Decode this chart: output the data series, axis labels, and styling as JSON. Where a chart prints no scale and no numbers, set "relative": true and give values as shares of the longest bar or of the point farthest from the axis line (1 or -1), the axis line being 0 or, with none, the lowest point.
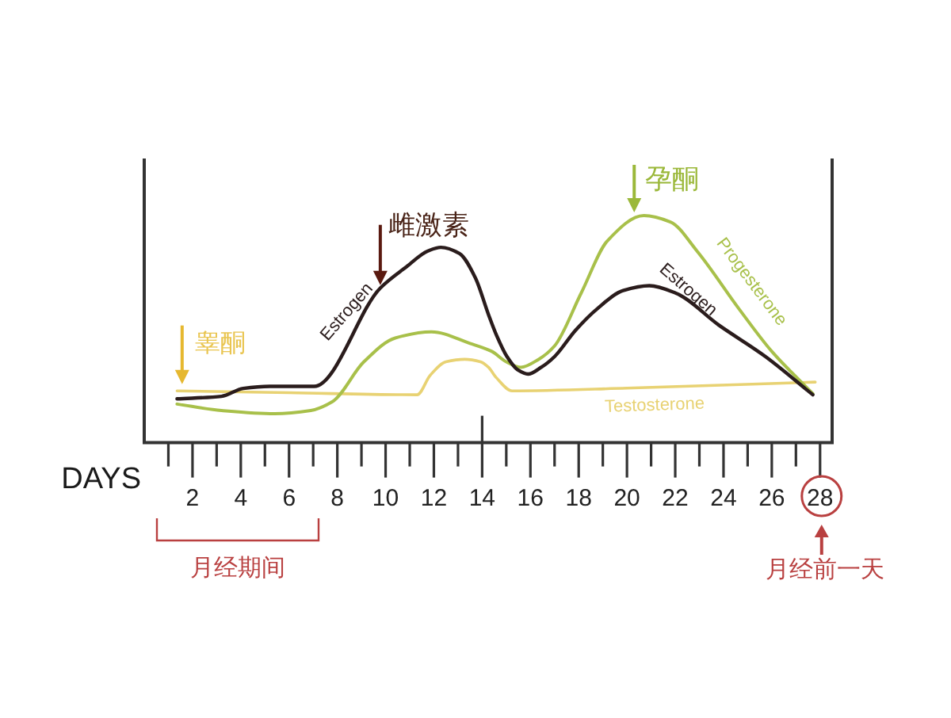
{
  "chart_data": {
    "type": "line",
    "relative": true,
    "xlabel": "DAYS",
    "xlim": [
      0,
      28.5
    ],
    "xticks": [
      {
        "value": 1,
        "label": null
      },
      2,
      {
        "value": 3,
        "label": null
      },
      4,
      {
        "value": 5,
        "label": null
      },
      6,
      {
        "value": 7,
        "label": null
      },
      8,
      {
        "value": 9,
        "label": null
      },
      10,
      {
        "value": 11,
        "label": null
      },
      12,
      {
        "value": 13,
        "label": null
      },
      14,
      {
        "value": 15,
        "label": null
      },
      16,
      {
        "value": 17,
        "label": null
      },
      18,
      {
        "value": 19,
        "label": null
      },
      20,
      {
        "value": 21,
        "label": null
      },
      22,
      {
        "value": 23,
        "label": null
      },
      24,
      {
        "value": 25,
        "label": null
      },
      26,
      {
        "value": 27,
        "label": null
      },
      28
    ],
    "line_style": "solid",
    "series": [
      {
        "name": "Estrogen",
        "color": "#2a1c1c",
        "x": [
          1.36,
          3.2,
          4.1,
          5.2,
          7.04,
          9.78,
          10.87,
          11.75,
          12.29,
          13.06,
          13.71,
          14.26,
          14.6,
          15.03,
          15.47,
          15.9,
          16.45,
          17.0,
          17.87,
          18.75,
          19.84,
          20.93,
          22.03,
          23.8,
          25.74,
          27.7
        ],
        "values": [
          0.193,
          0.204,
          0.239,
          0.248,
          0.248,
          0.681,
          0.775,
          0.844,
          0.86,
          0.833,
          0.728,
          0.565,
          0.472,
          0.379,
          0.321,
          0.302,
          0.332,
          0.379,
          0.495,
          0.588,
          0.67,
          0.691,
          0.658,
          0.518,
          0.379,
          0.211
        ]
      },
      {
        "name": "Progesterone",
        "color": "#a8c04a",
        "x": [
          1.36,
          3.2,
          5.4,
          6.9,
          7.8,
          9.1,
          10.4,
          11.9,
          13.5,
          14.4,
          15.0,
          15.6,
          16.34,
          17.0,
          18.1,
          19.2,
          20.7,
          21.8,
          22.9,
          24.65,
          26.0,
          27.7
        ],
        "values": [
          0.17,
          0.142,
          0.128,
          0.142,
          0.181,
          0.356,
          0.461,
          0.488,
          0.437,
          0.402,
          0.356,
          0.332,
          0.367,
          0.426,
          0.658,
          0.89,
          1.0,
          0.972,
          0.844,
          0.588,
          0.402,
          0.216
        ]
      },
      {
        "name": "Testosterone",
        "color": "#e8d273",
        "x": [
          1.36,
          6.0,
          11.31,
          11.85,
          12.5,
          13.28,
          13.93,
          14.26,
          14.59,
          15.24,
          20.0,
          27.8
        ],
        "values": [
          0.228,
          0.22,
          0.211,
          0.297,
          0.356,
          0.367,
          0.356,
          0.332,
          0.286,
          0.228,
          0.24,
          0.267
        ]
      }
    ],
    "ref_lines": [
      {
        "axis": "x",
        "value": 14
      }
    ],
    "annotations": [
      {
        "text": "睾酮",
        "x": 1.57,
        "y": 0.23
      },
      {
        "text": "雌激素",
        "x": 9.78,
        "y": 0.68
      },
      {
        "text": "孕酮",
        "x": 20.3,
        "y": 1.0
      },
      "月经期间",
      "月经前一天"
    ]
  }
}
